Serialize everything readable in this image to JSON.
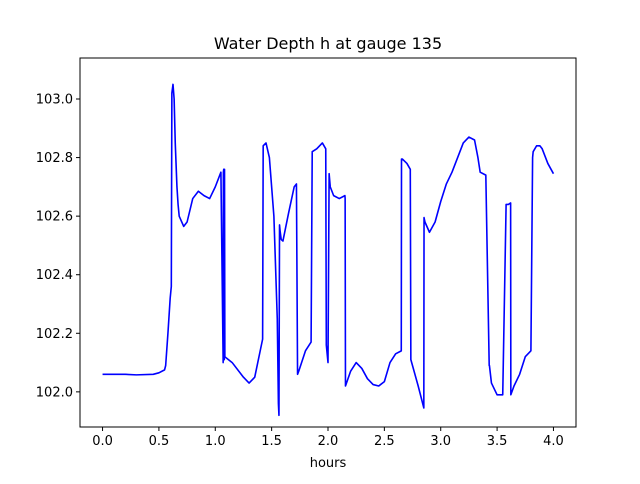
{
  "chart_data": {
    "type": "line",
    "title": "Water Depth h at gauge 135",
    "xlabel": "hours",
    "ylabel": "",
    "xlim": [
      -0.2,
      4.2
    ],
    "ylim": [
      101.88,
      103.14
    ],
    "xticks": [
      0.0,
      0.5,
      1.0,
      1.5,
      2.0,
      2.5,
      3.0,
      3.5,
      4.0
    ],
    "xtick_labels": [
      "0.0",
      "0.5",
      "1.0",
      "1.5",
      "2.0",
      "2.5",
      "3.0",
      "3.5",
      "4.0"
    ],
    "yticks": [
      102.0,
      102.2,
      102.4,
      102.6,
      102.8,
      103.0
    ],
    "ytick_labels": [
      "102.0",
      "102.2",
      "102.4",
      "102.6",
      "102.8",
      "103.0"
    ],
    "grid": false,
    "series": [
      {
        "color": "#0000ff",
        "x": [
          0.0,
          0.2,
          0.3,
          0.45,
          0.5,
          0.55,
          0.56,
          0.58,
          0.6,
          0.61,
          0.615,
          0.625,
          0.635,
          0.645,
          0.66,
          0.67,
          0.68,
          0.72,
          0.75,
          0.8,
          0.85,
          0.9,
          0.95,
          1.0,
          1.05,
          1.07,
          1.072,
          1.075,
          1.08,
          1.082,
          1.085,
          1.1,
          1.15,
          1.25,
          1.3,
          1.35,
          1.42,
          1.425,
          1.45,
          1.48,
          1.52,
          1.55,
          1.56,
          1.565,
          1.57,
          1.575,
          1.585,
          1.6,
          1.65,
          1.7,
          1.72,
          1.73,
          1.74,
          1.8,
          1.85,
          1.86,
          1.9,
          1.95,
          1.98,
          1.985,
          2.0,
          2.01,
          2.02,
          2.05,
          2.1,
          2.15,
          2.152,
          2.155,
          2.2,
          2.25,
          2.3,
          2.35,
          2.4,
          2.45,
          2.5,
          2.55,
          2.6,
          2.65,
          2.652,
          2.66,
          2.7,
          2.73,
          2.735,
          2.8,
          2.85,
          2.852,
          2.86,
          2.9,
          2.95,
          3.0,
          3.05,
          3.1,
          3.15,
          3.2,
          3.25,
          3.3,
          3.33,
          3.35,
          3.4,
          3.43,
          3.432,
          3.45,
          3.5,
          3.55,
          3.58,
          3.582,
          3.6,
          3.62,
          3.622,
          3.65,
          3.7,
          3.75,
          3.8,
          3.815,
          3.82,
          3.85,
          3.88,
          3.9,
          3.95,
          4.0
        ],
        "y": [
          102.06,
          102.06,
          102.058,
          102.06,
          102.065,
          102.075,
          102.09,
          102.2,
          102.32,
          102.36,
          103.02,
          103.05,
          103.0,
          102.85,
          102.7,
          102.64,
          102.6,
          102.565,
          102.58,
          102.66,
          102.685,
          102.67,
          102.66,
          102.7,
          102.75,
          102.1,
          102.75,
          102.76,
          102.11,
          102.76,
          102.12,
          102.115,
          102.1,
          102.05,
          102.03,
          102.05,
          102.18,
          102.84,
          102.85,
          102.8,
          102.6,
          102.25,
          101.96,
          101.92,
          102.57,
          102.55,
          102.52,
          102.515,
          102.61,
          102.7,
          102.71,
          102.06,
          102.07,
          102.14,
          102.17,
          102.82,
          102.83,
          102.85,
          102.83,
          102.16,
          102.1,
          102.745,
          102.7,
          102.67,
          102.66,
          102.67,
          102.66,
          102.02,
          102.07,
          102.1,
          102.08,
          102.045,
          102.025,
          102.02,
          102.035,
          102.1,
          102.13,
          102.14,
          102.795,
          102.795,
          102.78,
          102.76,
          102.11,
          102.02,
          101.945,
          102.595,
          102.58,
          102.545,
          102.58,
          102.65,
          102.71,
          102.75,
          102.8,
          102.85,
          102.87,
          102.86,
          102.8,
          102.75,
          102.74,
          102.09,
          102.09,
          102.03,
          101.99,
          101.99,
          102.64,
          102.64,
          102.64,
          102.645,
          101.99,
          102.02,
          102.06,
          102.12,
          102.14,
          102.8,
          102.82,
          102.84,
          102.84,
          102.83,
          102.78,
          102.745
        ]
      }
    ]
  }
}
